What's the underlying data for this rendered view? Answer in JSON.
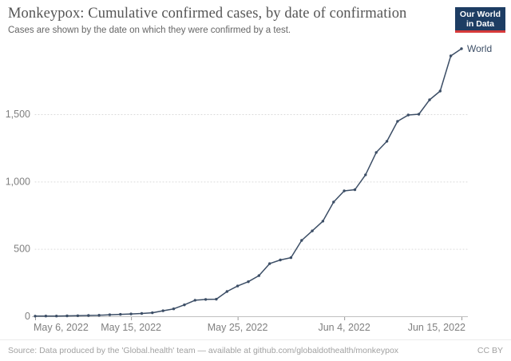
{
  "header": {
    "title": "Monkeypox: Cumulative confirmed cases, by date of confirmation",
    "subtitle": "Cases are shown by the date on which they were confirmed by a test.",
    "logo": {
      "line1": "Our World",
      "line2": "in Data",
      "bg_color": "#1d3d63",
      "bar_color": "#d73a3a",
      "text_color": "#ffffff"
    }
  },
  "chart_data": {
    "type": "line",
    "title": "Monkeypox: Cumulative confirmed cases, by date of confirmation",
    "xlabel": "",
    "ylabel": "",
    "ylim": [
      0,
      2000
    ],
    "grid": "horizontal-dotted",
    "legend_position": "end-of-line-label",
    "colors": {
      "line": "#3c4e66",
      "axis": "#c0c0c0",
      "gridline": "#d9d9d9",
      "tick_label": "#808080"
    },
    "x": [
      "2022-05-06",
      "2022-05-07",
      "2022-05-08",
      "2022-05-09",
      "2022-05-10",
      "2022-05-11",
      "2022-05-12",
      "2022-05-13",
      "2022-05-14",
      "2022-05-15",
      "2022-05-16",
      "2022-05-17",
      "2022-05-18",
      "2022-05-19",
      "2022-05-20",
      "2022-05-21",
      "2022-05-22",
      "2022-05-23",
      "2022-05-24",
      "2022-05-25",
      "2022-05-26",
      "2022-05-27",
      "2022-05-28",
      "2022-05-29",
      "2022-05-30",
      "2022-05-31",
      "2022-06-01",
      "2022-06-02",
      "2022-06-03",
      "2022-06-04",
      "2022-06-05",
      "2022-06-06",
      "2022-06-07",
      "2022-06-08",
      "2022-06-09",
      "2022-06-10",
      "2022-06-11",
      "2022-06-12",
      "2022-06-13",
      "2022-06-14",
      "2022-06-15"
    ],
    "series": [
      {
        "name": "World",
        "values": [
          1,
          2,
          2,
          3,
          4,
          6,
          8,
          11,
          14,
          17,
          21,
          26,
          41,
          55,
          85,
          119,
          125,
          127,
          184,
          225,
          257,
          302,
          391,
          418,
          435,
          563,
          634,
          706,
          848,
          931,
          940,
          1050,
          1216,
          1299,
          1447,
          1494,
          1500,
          1607,
          1672,
          1933,
          1986
        ]
      }
    ],
    "x_ticks": [
      {
        "label": "May 6, 2022",
        "day": 0
      },
      {
        "label": "May 15, 2022",
        "day": 9
      },
      {
        "label": "May 25, 2022",
        "day": 19
      },
      {
        "label": "Jun 4, 2022",
        "day": 29
      },
      {
        "label": "Jun 15, 2022",
        "day": 40
      }
    ],
    "y_ticks": [
      {
        "value": 0,
        "label": "0"
      },
      {
        "value": 500,
        "label": "500"
      },
      {
        "value": 1000,
        "label": "1,000"
      },
      {
        "value": 1500,
        "label": "1,500"
      }
    ]
  },
  "footer": {
    "source": "Source: Data produced by the 'Global.health' team — available at github.com/globaldothealth/monkeypox",
    "license": "CC BY"
  }
}
